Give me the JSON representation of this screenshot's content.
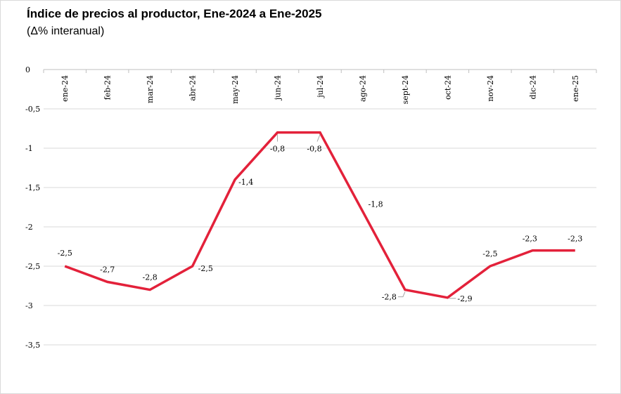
{
  "title": "Índice de precios al productor, Ene-2024 a Ene-2025",
  "subtitle": "(Δ% interanual)",
  "colors": {
    "series": "#e3213a",
    "grid": "#d9d9d9",
    "axis": "#bfbfbf"
  },
  "chart_data": {
    "type": "line",
    "categories": [
      "ene-24",
      "feb-24",
      "mar-24",
      "abr-24",
      "may-24",
      "jun-24",
      "jul-24",
      "ago-24",
      "sept-24",
      "oct-24",
      "nov-24",
      "dic-24",
      "ene-25"
    ],
    "series": [
      {
        "values": [
          -2.5,
          -2.7,
          -2.8,
          -2.5,
          -1.4,
          -0.8,
          -0.8,
          -1.8,
          -2.8,
          -2.9,
          -2.5,
          -2.3,
          -2.3
        ]
      }
    ],
    "data_labels": [
      "-2,5",
      "-2,7",
      "-2,8",
      "-2,5",
      "-1,4",
      "-0,8",
      "-0,8",
      "-1,8",
      "-2,8",
      "-2,9",
      "-2,5",
      "-2,3",
      "-2,3"
    ],
    "y_ticks": [
      0,
      -0.5,
      -1,
      -1.5,
      -2,
      -2.5,
      -3,
      -3.5
    ],
    "y_tick_labels": [
      "0",
      "-0,5",
      "-1",
      "-1,5",
      "-2",
      "-2,5",
      "-3",
      "-3,5"
    ],
    "ylim": [
      -3.5,
      0
    ],
    "grid": true,
    "legend": "none",
    "xlabel": "",
    "ylabel": ""
  }
}
